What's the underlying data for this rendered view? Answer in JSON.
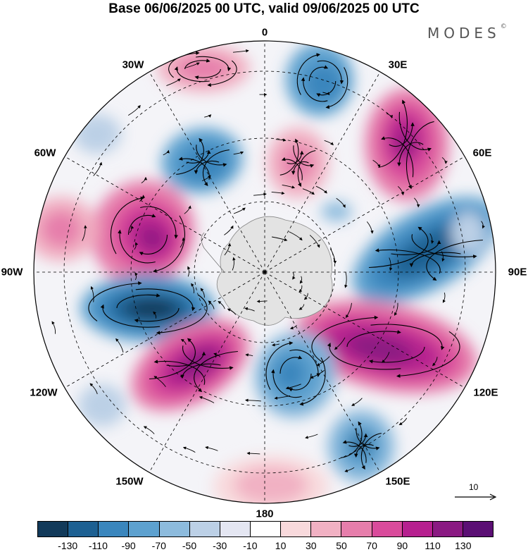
{
  "title": "Base 06/06/2025 00 UTC, valid 09/06/2025 00 UTC",
  "brand": {
    "text": "MODES",
    "mark": "©"
  },
  "longitude_labels": [
    "0",
    "30E",
    "60E",
    "90E",
    "120E",
    "150E",
    "180",
    "150W",
    "120W",
    "90W",
    "60W",
    "30W"
  ],
  "reference_vector": {
    "label": "10"
  },
  "colorbar": {
    "ticks": [
      "-130",
      "-110",
      "-90",
      "-70",
      "-50",
      "-30",
      "-10",
      "10",
      "30",
      "50",
      "70",
      "90",
      "110",
      "130"
    ],
    "colors": [
      "#123a5a",
      "#1d6092",
      "#3a86bd",
      "#5da1cf",
      "#8dbbdd",
      "#bcd0e6",
      "#e4e6f2",
      "#ffffff",
      "#f8d9dc",
      "#f1b1c3",
      "#e67eab",
      "#d94b9b",
      "#b6208f",
      "#8a1a82",
      "#5b0f74"
    ]
  },
  "map": {
    "projection": "south-polar-stereographic",
    "field": "anomaly",
    "colors": {
      "land": "#e3e3e3",
      "neutral": "#ffffff",
      "grid": "#000000"
    }
  }
}
